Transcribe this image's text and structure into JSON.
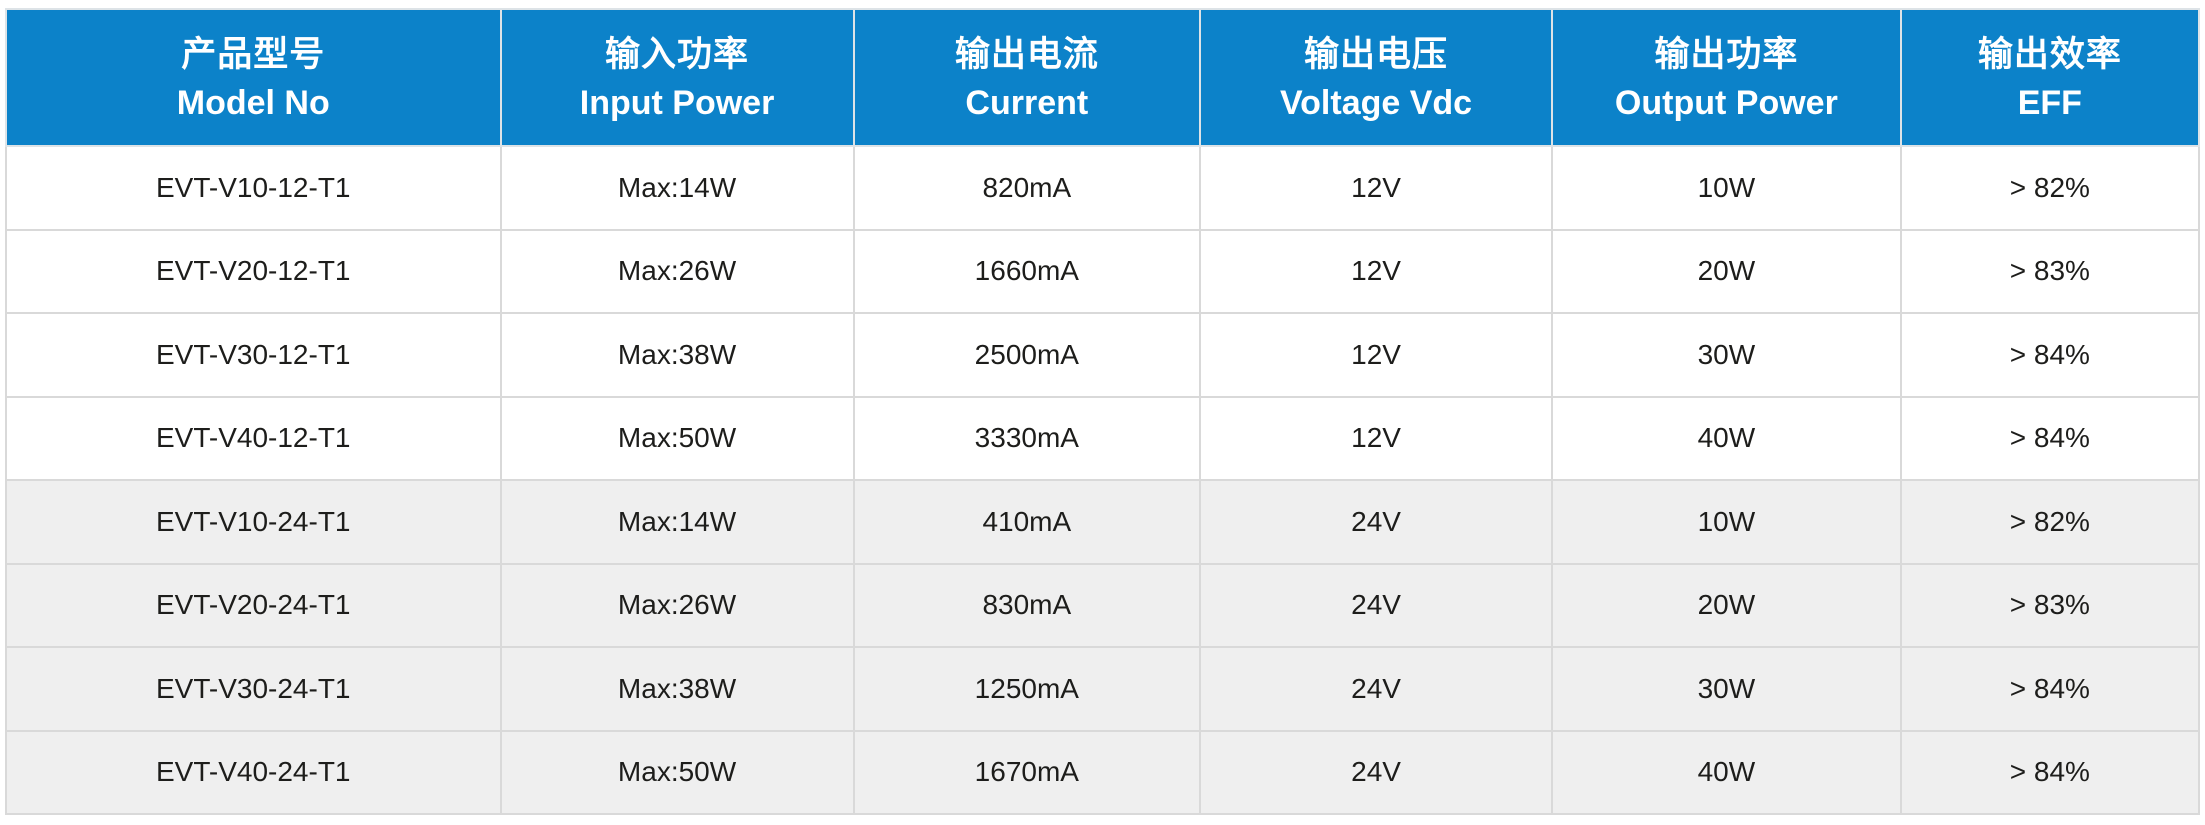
{
  "table": {
    "columns": [
      {
        "key": "model",
        "zh": "产品型号",
        "en": "Model No"
      },
      {
        "key": "input_power",
        "zh": "输入功率",
        "en": "Input Power"
      },
      {
        "key": "current",
        "zh": "输出电流",
        "en": "Current"
      },
      {
        "key": "voltage",
        "zh": "输出电压",
        "en": "Voltage Vdc"
      },
      {
        "key": "output_power",
        "zh": "输出功率",
        "en": "Output Power"
      },
      {
        "key": "eff",
        "zh": "输出效率",
        "en": "EFF"
      }
    ],
    "rows": [
      {
        "model": "EVT-V10-12-T1",
        "input_power": "Max:14W",
        "current": "820mA",
        "voltage": "12V",
        "output_power": "10W",
        "eff": "> 82%",
        "shaded": false
      },
      {
        "model": "EVT-V20-12-T1",
        "input_power": "Max:26W",
        "current": "1660mA",
        "voltage": "12V",
        "output_power": "20W",
        "eff": "> 83%",
        "shaded": false
      },
      {
        "model": "EVT-V30-12-T1",
        "input_power": "Max:38W",
        "current": "2500mA",
        "voltage": "12V",
        "output_power": "30W",
        "eff": "> 84%",
        "shaded": false
      },
      {
        "model": "EVT-V40-12-T1",
        "input_power": "Max:50W",
        "current": "3330mA",
        "voltage": "12V",
        "output_power": "40W",
        "eff": "> 84%",
        "shaded": false
      },
      {
        "model": "EVT-V10-24-T1",
        "input_power": "Max:14W",
        "current": "410mA",
        "voltage": "24V",
        "output_power": "10W",
        "eff": "> 82%",
        "shaded": true
      },
      {
        "model": "EVT-V20-24-T1",
        "input_power": "Max:26W",
        "current": "830mA",
        "voltage": "24V",
        "output_power": "20W",
        "eff": "> 83%",
        "shaded": true
      },
      {
        "model": "EVT-V30-24-T1",
        "input_power": "Max:38W",
        "current": "1250mA",
        "voltage": "24V",
        "output_power": "30W",
        "eff": "> 84%",
        "shaded": true
      },
      {
        "model": "EVT-V40-24-T1",
        "input_power": "Max:50W",
        "current": "1670mA",
        "voltage": "24V",
        "output_power": "40W",
        "eff": "> 84%",
        "shaded": true
      }
    ],
    "colors": {
      "header_bg": "#0c82c9",
      "header_text": "#ffffff",
      "row_bg": "#ffffff",
      "row_alt_bg": "#efefef",
      "border": "#d9d9d9",
      "body_text": "#1d1d1b"
    }
  }
}
